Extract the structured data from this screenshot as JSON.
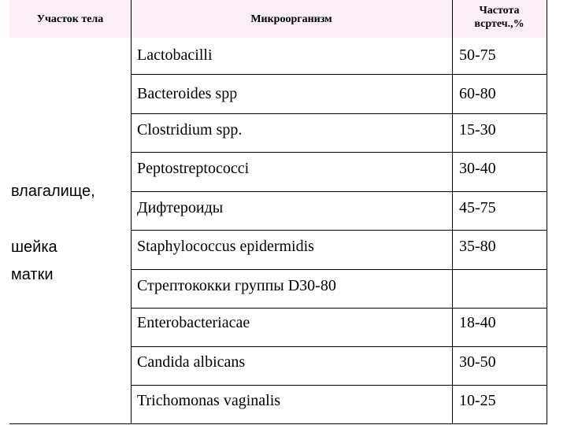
{
  "header": {
    "site": "Участок тела",
    "microorganism": "Микроорганизм",
    "frequency_line1": "Частота",
    "frequency_line2": "всртеч.,%"
  },
  "site": {
    "line1": "влагалище,",
    "line2": "шейка",
    "line3": "матки"
  },
  "rows": [
    {
      "organism": "Lactobacilli",
      "frequency": "50-75"
    },
    {
      "organism": "Bacteroides spp",
      "frequency": "60-80"
    },
    {
      "organism": "Clostridium spp.",
      "frequency": "15-30"
    },
    {
      "organism": "Peptostreptococci",
      "frequency": "30-40"
    },
    {
      "organism": "Дифтероиды",
      "frequency": "45-75"
    },
    {
      "organism": "Staphylococcus epidermidis",
      "frequency": "35-80"
    },
    {
      "organism": "Стрептококки группы D30-80",
      "frequency": ""
    },
    {
      "organism": "Enterobacteriacae",
      "frequency": "18-40"
    },
    {
      "organism": "Candida albicans",
      "frequency": "30-50"
    },
    {
      "organism": "Trichomonas vaginalis",
      "frequency": "10-25"
    }
  ]
}
